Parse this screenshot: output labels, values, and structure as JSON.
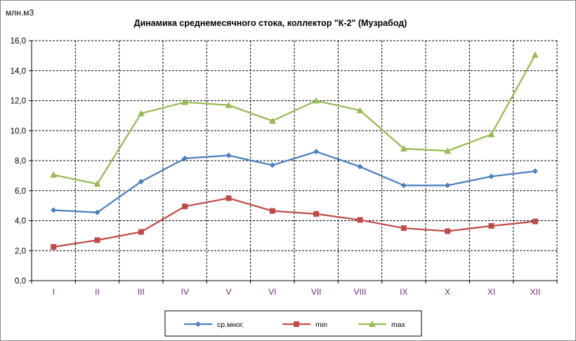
{
  "chart_data": {
    "type": "line",
    "title": "Динамика среднемесячного стока, коллектор \"К-2\" (Музрабод)",
    "ylabel": "млн.м3",
    "xlabel": "",
    "ylim": [
      0,
      16
    ],
    "yticks": [
      "0,0",
      "2,0",
      "4,0",
      "6,0",
      "8,0",
      "10,0",
      "12,0",
      "14,0",
      "16,0"
    ],
    "categories": [
      "I",
      "II",
      "III",
      "IV",
      "V",
      "VI",
      "VII",
      "VIII",
      "IX",
      "X",
      "XI",
      "XII"
    ],
    "grid": true,
    "legend_position": "bottom",
    "series": [
      {
        "name": "ср.мног.",
        "color": "#4a7ebb",
        "marker": "diamond",
        "values": [
          4.7,
          4.55,
          6.6,
          8.15,
          8.35,
          7.7,
          8.6,
          7.6,
          6.35,
          6.35,
          6.95,
          7.3
        ]
      },
      {
        "name": "min",
        "color": "#be4b48",
        "marker": "square",
        "values": [
          2.25,
          2.7,
          3.25,
          4.95,
          5.5,
          4.65,
          4.45,
          4.05,
          3.5,
          3.3,
          3.65,
          3.95
        ]
      },
      {
        "name": "max",
        "color": "#98b954",
        "marker": "triangle",
        "values": [
          7.05,
          6.45,
          11.15,
          11.9,
          11.7,
          10.65,
          12.0,
          11.35,
          8.8,
          8.65,
          9.75,
          15.05
        ]
      }
    ]
  }
}
